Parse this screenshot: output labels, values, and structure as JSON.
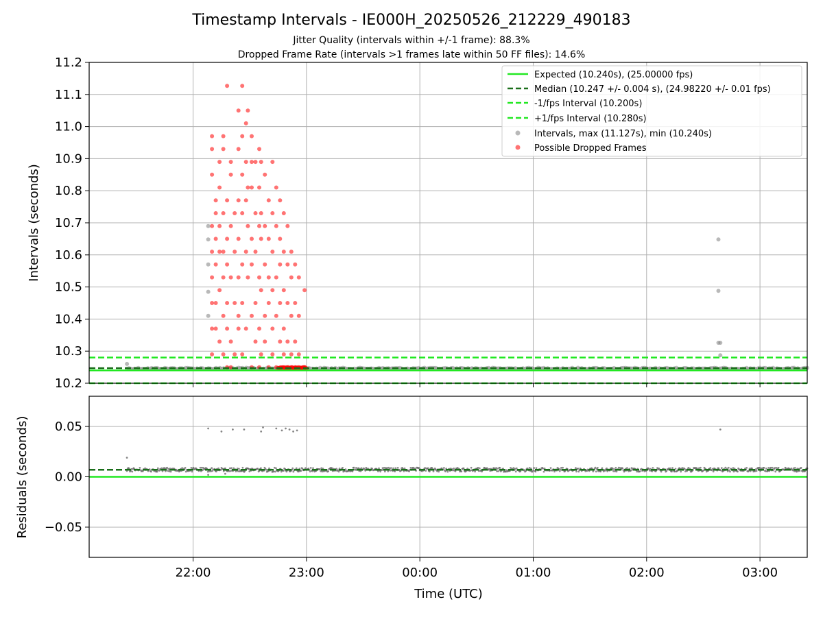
{
  "chart_data": {
    "type": "scatter",
    "title": "Timestamp Intervals - IE000H_20250526_212229_490183",
    "subtitle_lines": [
      "Jitter Quality (intervals within +/-1 frame): 88.3%",
      "Dropped Frame Rate (intervals >1 frames late within 50 FF files): 14.6%"
    ],
    "xlabel": "Time (UTC)",
    "x_range": [
      "21:05",
      "03:25"
    ],
    "x_ticks": [
      "22:00",
      "23:00",
      "00:00",
      "01:00",
      "02:00",
      "03:00"
    ],
    "grid": true,
    "panels": [
      {
        "name": "intervals",
        "ylabel": "Intervals (seconds)",
        "ylim": [
          10.2,
          11.2
        ],
        "y_ticks": [
          "10.2",
          "10.3",
          "10.4",
          "10.5",
          "10.6",
          "10.7",
          "10.8",
          "10.9",
          "11.0",
          "11.1",
          "11.2"
        ],
        "legend_position": "upper-right",
        "lines": [
          {
            "name": "Expected (10.240s), (25.00000 fps)",
            "y": 10.24,
            "style": "solid",
            "color": "#22e822"
          },
          {
            "name": "Median (10.247 +/- 0.004 s), (24.98220 +/- 0.01 fps)",
            "y": 10.247,
            "style": "dashed",
            "color": "#1a6e1a"
          },
          {
            "name": "-1/fps Interval (10.200s)",
            "y": 10.2,
            "style": "dashed",
            "color": "#22e822"
          },
          {
            "name": "+1/fps Interval (10.280s)",
            "y": 10.28,
            "style": "dashed",
            "color": "#22e822"
          }
        ],
        "series": [
          {
            "name": "Intervals, max (11.127s), min (10.240s)",
            "color": "#808080",
            "baseline_y": 10.246,
            "baseline_x_range": [
              "21:25",
              "03:25"
            ],
            "points": [
              {
                "t": "21:25",
                "y": 10.26
              },
              {
                "t": "22:08",
                "y": 10.41
              },
              {
                "t": "22:08",
                "y": 10.485
              },
              {
                "t": "22:08",
                "y": 10.57
              },
              {
                "t": "22:08",
                "y": 10.648
              },
              {
                "t": "22:08",
                "y": 10.69
              },
              {
                "t": "02:38",
                "y": 10.648
              },
              {
                "t": "02:38",
                "y": 10.488
              },
              {
                "t": "02:38",
                "y": 10.326
              },
              {
                "t": "02:39",
                "y": 10.326
              },
              {
                "t": "02:39",
                "y": 10.287
              }
            ]
          },
          {
            "name": "Possible Dropped Frames",
            "color": "#ff0000",
            "points": [
              {
                "t": "22:10",
                "y": 10.97
              },
              {
                "t": "22:10",
                "y": 10.93
              },
              {
                "t": "22:10",
                "y": 10.85
              },
              {
                "t": "22:10",
                "y": 10.69
              },
              {
                "t": "22:10",
                "y": 10.61
              },
              {
                "t": "22:10",
                "y": 10.53
              },
              {
                "t": "22:10",
                "y": 10.45
              },
              {
                "t": "22:10",
                "y": 10.37
              },
              {
                "t": "22:10",
                "y": 10.29
              },
              {
                "t": "22:12",
                "y": 10.77
              },
              {
                "t": "22:12",
                "y": 10.65
              },
              {
                "t": "22:12",
                "y": 10.57
              },
              {
                "t": "22:12",
                "y": 10.45
              },
              {
                "t": "22:12",
                "y": 10.37
              },
              {
                "t": "22:12",
                "y": 10.73
              },
              {
                "t": "22:14",
                "y": 10.89
              },
              {
                "t": "22:14",
                "y": 10.81
              },
              {
                "t": "22:14",
                "y": 10.69
              },
              {
                "t": "22:14",
                "y": 10.61
              },
              {
                "t": "22:14",
                "y": 10.49
              },
              {
                "t": "22:14",
                "y": 10.33
              },
              {
                "t": "22:16",
                "y": 10.97
              },
              {
                "t": "22:16",
                "y": 10.93
              },
              {
                "t": "22:16",
                "y": 10.73
              },
              {
                "t": "22:16",
                "y": 10.61
              },
              {
                "t": "22:16",
                "y": 10.53
              },
              {
                "t": "22:16",
                "y": 10.41
              },
              {
                "t": "22:16",
                "y": 10.29
              },
              {
                "t": "22:18",
                "y": 11.127
              },
              {
                "t": "22:18",
                "y": 10.77
              },
              {
                "t": "22:18",
                "y": 10.65
              },
              {
                "t": "22:18",
                "y": 10.57
              },
              {
                "t": "22:18",
                "y": 10.45
              },
              {
                "t": "22:18",
                "y": 10.37
              },
              {
                "t": "22:18",
                "y": 10.25
              },
              {
                "t": "22:20",
                "y": 10.89
              },
              {
                "t": "22:20",
                "y": 10.85
              },
              {
                "t": "22:20",
                "y": 10.69
              },
              {
                "t": "22:20",
                "y": 10.53
              },
              {
                "t": "22:20",
                "y": 10.33
              },
              {
                "t": "22:20",
                "y": 10.25
              },
              {
                "t": "22:22",
                "y": 10.73
              },
              {
                "t": "22:22",
                "y": 10.61
              },
              {
                "t": "22:22",
                "y": 10.45
              },
              {
                "t": "22:22",
                "y": 10.29
              },
              {
                "t": "22:24",
                "y": 11.05
              },
              {
                "t": "22:24",
                "y": 10.93
              },
              {
                "t": "22:24",
                "y": 10.77
              },
              {
                "t": "22:24",
                "y": 10.65
              },
              {
                "t": "22:24",
                "y": 10.53
              },
              {
                "t": "22:24",
                "y": 10.41
              },
              {
                "t": "22:24",
                "y": 10.37
              },
              {
                "t": "22:26",
                "y": 11.127
              },
              {
                "t": "22:26",
                "y": 10.97
              },
              {
                "t": "22:26",
                "y": 10.85
              },
              {
                "t": "22:26",
                "y": 10.73
              },
              {
                "t": "22:26",
                "y": 10.57
              },
              {
                "t": "22:26",
                "y": 10.45
              },
              {
                "t": "22:26",
                "y": 10.29
              },
              {
                "t": "22:28",
                "y": 11.01
              },
              {
                "t": "22:28",
                "y": 10.89
              },
              {
                "t": "22:28",
                "y": 10.77
              },
              {
                "t": "22:28",
                "y": 10.61
              },
              {
                "t": "22:28",
                "y": 10.37
              },
              {
                "t": "22:29",
                "y": 11.05
              },
              {
                "t": "22:29",
                "y": 10.81
              },
              {
                "t": "22:29",
                "y": 10.69
              },
              {
                "t": "22:29",
                "y": 10.53
              },
              {
                "t": "22:31",
                "y": 10.97
              },
              {
                "t": "22:31",
                "y": 10.89
              },
              {
                "t": "22:31",
                "y": 10.81
              },
              {
                "t": "22:31",
                "y": 10.65
              },
              {
                "t": "22:31",
                "y": 10.57
              },
              {
                "t": "22:31",
                "y": 10.41
              },
              {
                "t": "22:31",
                "y": 10.25
              },
              {
                "t": "22:33",
                "y": 10.89
              },
              {
                "t": "22:33",
                "y": 10.73
              },
              {
                "t": "22:33",
                "y": 10.61
              },
              {
                "t": "22:33",
                "y": 10.45
              },
              {
                "t": "22:33",
                "y": 10.33
              },
              {
                "t": "22:35",
                "y": 10.93
              },
              {
                "t": "22:35",
                "y": 10.81
              },
              {
                "t": "22:35",
                "y": 10.69
              },
              {
                "t": "22:35",
                "y": 10.53
              },
              {
                "t": "22:35",
                "y": 10.37
              },
              {
                "t": "22:35",
                "y": 10.25
              },
              {
                "t": "22:36",
                "y": 10.89
              },
              {
                "t": "22:36",
                "y": 10.73
              },
              {
                "t": "22:36",
                "y": 10.65
              },
              {
                "t": "22:36",
                "y": 10.49
              },
              {
                "t": "22:36",
                "y": 10.29
              },
              {
                "t": "22:38",
                "y": 10.85
              },
              {
                "t": "22:38",
                "y": 10.69
              },
              {
                "t": "22:38",
                "y": 10.57
              },
              {
                "t": "22:38",
                "y": 10.41
              },
              {
                "t": "22:38",
                "y": 10.33
              },
              {
                "t": "22:40",
                "y": 10.77
              },
              {
                "t": "22:40",
                "y": 10.65
              },
              {
                "t": "22:40",
                "y": 10.53
              },
              {
                "t": "22:40",
                "y": 10.45
              },
              {
                "t": "22:40",
                "y": 10.25
              },
              {
                "t": "22:42",
                "y": 10.89
              },
              {
                "t": "22:42",
                "y": 10.73
              },
              {
                "t": "22:42",
                "y": 10.61
              },
              {
                "t": "22:42",
                "y": 10.49
              },
              {
                "t": "22:42",
                "y": 10.37
              },
              {
                "t": "22:42",
                "y": 10.29
              },
              {
                "t": "22:44",
                "y": 10.81
              },
              {
                "t": "22:44",
                "y": 10.69
              },
              {
                "t": "22:44",
                "y": 10.53
              },
              {
                "t": "22:44",
                "y": 10.41
              },
              {
                "t": "22:44",
                "y": 10.25
              },
              {
                "t": "22:46",
                "y": 10.77
              },
              {
                "t": "22:46",
                "y": 10.65
              },
              {
                "t": "22:46",
                "y": 10.57
              },
              {
                "t": "22:46",
                "y": 10.45
              },
              {
                "t": "22:46",
                "y": 10.33
              },
              {
                "t": "22:48",
                "y": 10.73
              },
              {
                "t": "22:48",
                "y": 10.61
              },
              {
                "t": "22:48",
                "y": 10.49
              },
              {
                "t": "22:48",
                "y": 10.37
              },
              {
                "t": "22:48",
                "y": 10.29
              },
              {
                "t": "22:50",
                "y": 10.69
              },
              {
                "t": "22:50",
                "y": 10.57
              },
              {
                "t": "22:50",
                "y": 10.45
              },
              {
                "t": "22:50",
                "y": 10.33
              },
              {
                "t": "22:50",
                "y": 10.25
              },
              {
                "t": "22:52",
                "y": 10.61
              },
              {
                "t": "22:52",
                "y": 10.53
              },
              {
                "t": "22:52",
                "y": 10.41
              },
              {
                "t": "22:52",
                "y": 10.29
              },
              {
                "t": "22:54",
                "y": 10.57
              },
              {
                "t": "22:54",
                "y": 10.45
              },
              {
                "t": "22:54",
                "y": 10.33
              },
              {
                "t": "22:54",
                "y": 10.25
              },
              {
                "t": "22:56",
                "y": 10.53
              },
              {
                "t": "22:56",
                "y": 10.41
              },
              {
                "t": "22:56",
                "y": 10.29
              },
              {
                "t": "22:59",
                "y": 10.49
              },
              {
                "t": "22:59",
                "y": 10.25
              }
            ]
          }
        ]
      },
      {
        "name": "residuals",
        "ylabel": "Residuals (seconds)",
        "ylim": [
          -0.08,
          0.08
        ],
        "y_ticks": [
          "−0.05",
          "0.00",
          "0.05"
        ],
        "lines": [
          {
            "y": 0.0,
            "style": "solid",
            "color": "#22e822"
          },
          {
            "y": 0.007,
            "style": "dashed",
            "color": "#1a6e1a"
          }
        ],
        "series": [
          {
            "name": "residuals",
            "color": "#666666",
            "baseline_y": 0.007,
            "baseline_x_range": [
              "21:25",
              "03:25"
            ],
            "points": [
              {
                "t": "21:25",
                "y": 0.019
              },
              {
                "t": "22:08",
                "y": 0.048
              },
              {
                "t": "22:08",
                "y": 0.002
              },
              {
                "t": "22:15",
                "y": 0.045
              },
              {
                "t": "22:17",
                "y": 0.003
              },
              {
                "t": "22:21",
                "y": 0.047
              },
              {
                "t": "22:27",
                "y": 0.047
              },
              {
                "t": "22:36",
                "y": 0.045
              },
              {
                "t": "22:37",
                "y": 0.049
              },
              {
                "t": "22:44",
                "y": 0.048
              },
              {
                "t": "22:47",
                "y": 0.046
              },
              {
                "t": "22:49",
                "y": 0.048
              },
              {
                "t": "22:51",
                "y": 0.047
              },
              {
                "t": "22:53",
                "y": 0.045
              },
              {
                "t": "22:55",
                "y": 0.046
              },
              {
                "t": "02:39",
                "y": 0.047
              }
            ]
          }
        ]
      }
    ]
  }
}
